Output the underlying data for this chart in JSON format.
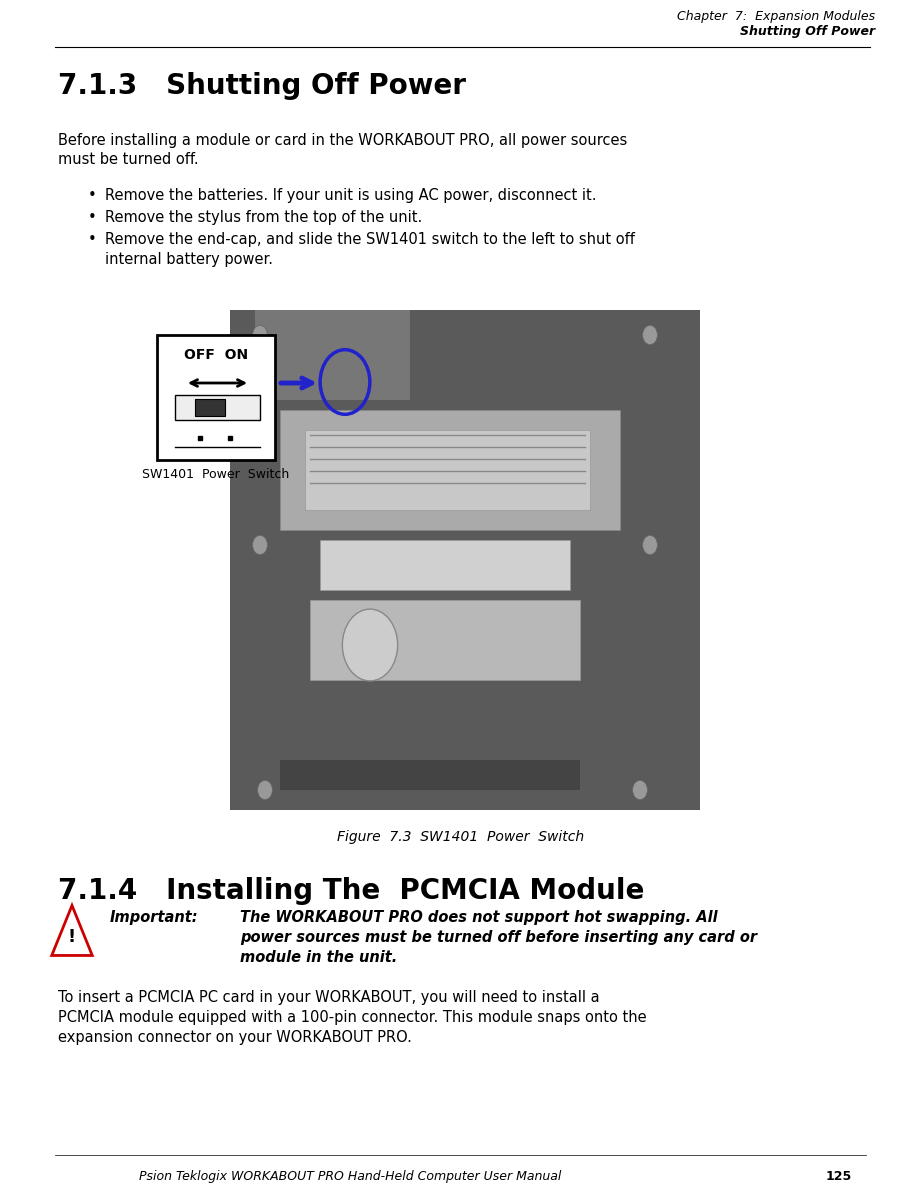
{
  "bg_color": "#ffffff",
  "page_width": 9.21,
  "page_height": 11.97,
  "dpi": 100,
  "header_chapter": "Chapter  7:  Expansion Modules",
  "header_section": "Shutting Off Power",
  "section1_title": "7.1.3   Shutting Off Power",
  "body1_line1": "Before installing a module or card in the WORKABOUT PRO, all power sources",
  "body1_line2": "must be turned off.",
  "bullet1": "Remove the batteries. If your unit is using AC power, disconnect it.",
  "bullet2": "Remove the stylus from the top of the unit.",
  "bullet3a": "Remove the end-cap, and slide the SW1401 switch to the left to shut off",
  "bullet3b": "internal battery power.",
  "sw_diagram_label": "SW1401  Power  Switch",
  "figure_caption": "Figure  7.3  SW1401  Power  Switch",
  "section2_title": "7.1.4   Installing The  PCMCIA Module",
  "important_label": "Important:",
  "important_line1": "The WORKABOUT PRO does not support hot swapping. All",
  "important_line2": "power sources must be turned off before inserting any card or",
  "important_line3": "module in the unit.",
  "body2_line1": "To insert a PCMCIA PC card in your WORKABOUT, you will need to install a",
  "body2_line2": "PCMCIA module equipped with a 100-pin connector. This module snaps onto the",
  "body2_line3": "expansion connector on your WORKABOUT PRO.",
  "footer_text": "Psion Teklogix WORKABOUT PRO Hand-Held Computer User Manual",
  "footer_page": "125",
  "header_fontsize": 9,
  "title1_fontsize": 20,
  "body_fontsize": 10.5,
  "title2_fontsize": 20,
  "important_fontsize": 10.5,
  "caption_fontsize": 10,
  "footer_fontsize": 9,
  "sw_label_fontsize": 9
}
